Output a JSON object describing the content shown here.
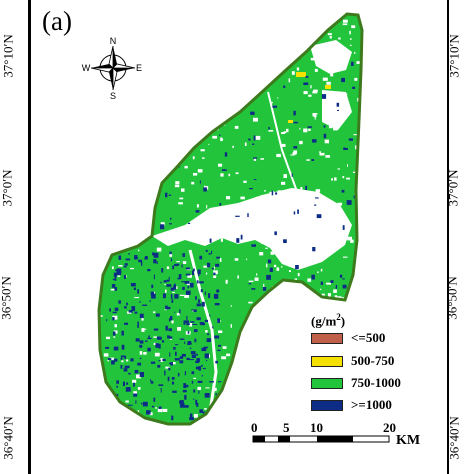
{
  "panel_label": "(a)",
  "latitude_labels": [
    "37°10′N",
    "37°0′N",
    "36°50′N",
    "36°40′N"
  ],
  "compass": {
    "north": "N",
    "south": "S",
    "east": "E",
    "west": "W"
  },
  "legend": {
    "unit_base": "(g/m",
    "unit_sup": "2",
    "unit_close": ")",
    "items": [
      {
        "label": "<=500",
        "color": "#c0604a"
      },
      {
        "label": "500-750",
        "color": "#f5e100"
      },
      {
        "label": "750-1000",
        "color": "#22c43c"
      },
      {
        "label": ">=1000",
        "color": "#0c2c86"
      }
    ]
  },
  "scale_bar": {
    "ticks": [
      "0",
      "5",
      "10",
      "20"
    ],
    "unit": "KM"
  },
  "colors": {
    "region_outline": "#3d7a1c",
    "fill_main": "#22c43c",
    "gap": "#ffffff",
    "dense": "#0c2c86",
    "low": "#f5e100"
  }
}
